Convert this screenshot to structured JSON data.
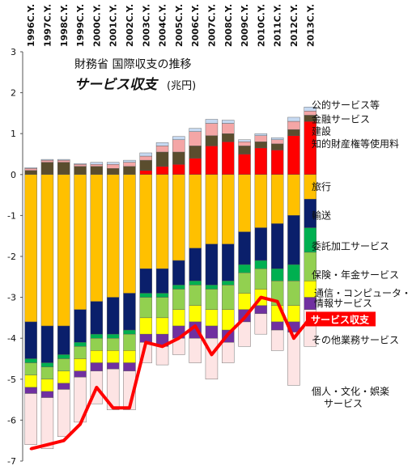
{
  "chart_data": {
    "type": "bar",
    "title": "財務省 国際収支の推移",
    "subtitle_main": "サービス収支",
    "subtitle_unit": "(兆円)",
    "categories": [
      "1996C.Y.",
      "1997C.Y.",
      "1998C.Y.",
      "1999C.Y.",
      "2000C.Y.",
      "2001C.Y.",
      "2002C.Y.",
      "2003C.Y.",
      "2004C.Y.",
      "2005C.Y.",
      "2006C.Y.",
      "2007C.Y.",
      "2008C.Y.",
      "2009C.Y.",
      "2010C.Y.",
      "2011C.Y.",
      "2012C.Y.",
      "2013C.Y."
    ],
    "ylim": [
      -7,
      3
    ],
    "yticks": [
      3,
      2,
      1,
      0,
      -1,
      -2,
      -3,
      -4,
      -5,
      -6,
      -7
    ],
    "grid": false,
    "stack_order_positive": [
      "建設",
      "知的財産権等使用料",
      "旅行",
      "公的サービス等",
      "金融サービス"
    ],
    "stack_order_negative": [
      "旅行",
      "輸送",
      "委託加工サービス",
      "保険・年金サービス",
      "通信・コンピュータ・情報サービス",
      "その他業務サービス",
      "個人・文化・娯楽サービス"
    ],
    "series": [
      {
        "name": "個人・文化・娯楽サービス",
        "color": "#fde4e4",
        "values": [
          -1.25,
          -1.25,
          -1.15,
          -1.1,
          -0.8,
          -1.0,
          -0.95,
          -0.5,
          -0.45,
          -0.4,
          -0.6,
          -1.0,
          -0.5,
          -0.6,
          -0.5,
          -0.5,
          -1.3,
          -0.9
        ]
      },
      {
        "name": "その他業務サービス",
        "color": "#7030a0",
        "values": [
          -0.15,
          -0.15,
          -0.15,
          -0.15,
          -0.2,
          -0.15,
          -0.2,
          -0.2,
          -0.3,
          -0.3,
          -0.4,
          -0.3,
          -0.3,
          -0.3,
          -0.2,
          -0.2,
          -0.25,
          -0.3
        ]
      },
      {
        "name": "通信・コンピュータ・情報サービス",
        "color": "#ffff00",
        "values": [
          -0.3,
          -0.3,
          -0.3,
          -0.3,
          -0.3,
          -0.3,
          -0.3,
          -0.4,
          -0.4,
          -0.4,
          -0.4,
          -0.4,
          -0.5,
          -0.4,
          -0.4,
          -0.4,
          -0.4,
          -0.4
        ]
      },
      {
        "name": "保険・年金サービス",
        "color": "#92d050",
        "values": [
          -0.3,
          -0.3,
          -0.3,
          -0.3,
          -0.3,
          -0.3,
          -0.4,
          -0.5,
          -0.5,
          -0.5,
          -0.5,
          -0.5,
          -0.6,
          -0.5,
          -0.5,
          -0.6,
          -0.6,
          -0.7
        ]
      },
      {
        "name": "委託加工サービス",
        "color": "#00b050",
        "values": [
          -0.1,
          -0.1,
          -0.1,
          -0.1,
          -0.1,
          -0.1,
          -0.1,
          -0.1,
          -0.1,
          -0.1,
          -0.1,
          -0.1,
          -0.1,
          -0.2,
          -0.2,
          -0.3,
          -0.4,
          -0.6
        ]
      },
      {
        "name": "輸送",
        "color": "#0a1f6b",
        "values": [
          -0.9,
          -0.9,
          -0.7,
          -0.8,
          -0.8,
          -0.9,
          -0.9,
          -0.6,
          -0.6,
          -0.6,
          -0.8,
          -1.0,
          -0.9,
          -0.8,
          -0.8,
          -1.1,
          -1.2,
          -0.7
        ]
      },
      {
        "name": "旅行",
        "color": "#ffc000",
        "values": [
          -3.6,
          -3.7,
          -3.7,
          -3.3,
          -3.1,
          -3.0,
          -2.9,
          -2.3,
          -2.3,
          -2.1,
          -1.8,
          -1.7,
          -1.7,
          -1.4,
          -1.3,
          -1.2,
          -1.0,
          -0.6
        ]
      },
      {
        "name": "建設",
        "color": "#ff0000",
        "values": [
          0,
          0,
          0,
          0,
          0,
          0,
          0,
          0.1,
          0.2,
          0.25,
          0.4,
          0.7,
          0.8,
          0.5,
          0.65,
          0.6,
          0.95,
          1.3
        ]
      },
      {
        "name": "知的財産権等使用料",
        "color": "#5a4d2e",
        "values": [
          0.1,
          0.3,
          0.3,
          0.2,
          0.2,
          0.15,
          0.2,
          0.25,
          0.35,
          0.3,
          0.3,
          0.25,
          0.2,
          0.2,
          0.15,
          0.15,
          0.15,
          0.15
        ]
      },
      {
        "name": "公的サービス等",
        "color": "#f4a6a6",
        "values": [
          0.05,
          0.05,
          0.05,
          0.05,
          0.05,
          0.1,
          0.1,
          0.1,
          0.15,
          0.3,
          0.35,
          0.3,
          0.25,
          0.1,
          0.15,
          0.1,
          0.2,
          0.1
        ]
      },
      {
        "name": "金融サービス",
        "color": "#c6d9f1",
        "values": [
          0.02,
          0.02,
          0.02,
          0.02,
          0.05,
          0.05,
          0.05,
          0.08,
          0.08,
          0.08,
          0.08,
          0.1,
          0.08,
          0.05,
          0.05,
          0.05,
          0.1,
          0.1
        ]
      }
    ],
    "line": {
      "name": "サービス収支",
      "color": "#ff0000",
      "values": [
        -6.7,
        -6.6,
        -6.5,
        -6.1,
        -5.2,
        -5.7,
        -5.7,
        -4.1,
        -4.2,
        -4.0,
        -3.7,
        -4.4,
        -3.9,
        -3.5,
        -3.0,
        -3.1,
        -4.0,
        -3.5
      ]
    },
    "legend_labels": [
      {
        "text": "公的サービス等",
        "y": 1.7
      },
      {
        "text": "金融サービス",
        "y": 1.35
      },
      {
        "text": "建設",
        "y": 1.05
      },
      {
        "text": "知的財産権等使用料",
        "y": 0.75
      },
      {
        "text": "旅行",
        "y": -0.3
      },
      {
        "text": "輸送",
        "y": -1.0
      },
      {
        "text": "委託加工サービス",
        "y": -1.75
      },
      {
        "text": "保険・年金サービス",
        "y": -2.45
      },
      {
        "text": "通信・コンピュータ・",
        "y": -2.9
      },
      {
        "text": "情報サービス",
        "y": -3.15
      },
      {
        "text": "その他業務サービス",
        "y": -4.05
      },
      {
        "text": "個人・文化・娯楽",
        "y": -5.3
      },
      {
        "text": "サービス",
        "y": -5.6
      }
    ],
    "line_label": "サービス収支",
    "line_label_y": -3.55
  }
}
